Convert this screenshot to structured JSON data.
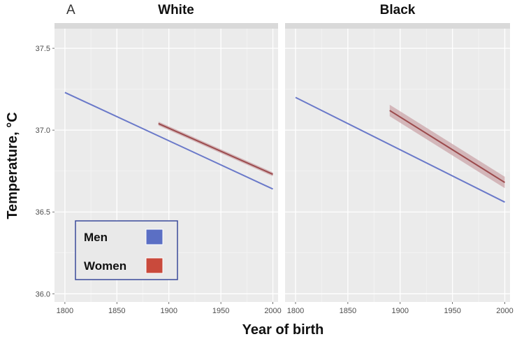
{
  "chart_data": {
    "type": "line",
    "panel_label": "A",
    "xlabel": "Year of birth",
    "ylabel": "Temperature, °C",
    "xlim": [
      1790,
      2005
    ],
    "ylim": [
      35.95,
      37.62
    ],
    "x_ticks": [
      1800,
      1850,
      1900,
      1950,
      2000
    ],
    "x_tick_labels": [
      "1800",
      "1850",
      "1900",
      "1950",
      "2000"
    ],
    "y_ticks": [
      36.0,
      36.5,
      37.0,
      37.5
    ],
    "y_tick_labels": [
      "36.0",
      "36.5",
      "37.0",
      "37.5"
    ],
    "grid": true,
    "legend": {
      "placement": "bottom-left",
      "entries": [
        {
          "label": "Men",
          "color": "#5b6fc4"
        },
        {
          "label": "Women",
          "color": "#c94a3c"
        }
      ]
    },
    "facets": [
      {
        "title": "White",
        "series": [
          {
            "name": "Men",
            "color": "#6a79c9",
            "x": [
              1800,
              2000
            ],
            "y": [
              37.23,
              36.64
            ],
            "band": 0.0
          },
          {
            "name": "Women",
            "color": "#9b4a4c",
            "x": [
              1890,
              2000
            ],
            "y": [
              37.04,
              36.73
            ],
            "band": 0.012
          }
        ]
      },
      {
        "title": "Black",
        "series": [
          {
            "name": "Men",
            "color": "#6a79c9",
            "x": [
              1800,
              2000
            ],
            "y": [
              37.2,
              36.56
            ],
            "band": 0.0
          },
          {
            "name": "Women",
            "color": "#9b4a4c",
            "x": [
              1890,
              2000
            ],
            "y": [
              37.12,
              36.68
            ],
            "band": 0.035
          }
        ]
      }
    ]
  }
}
